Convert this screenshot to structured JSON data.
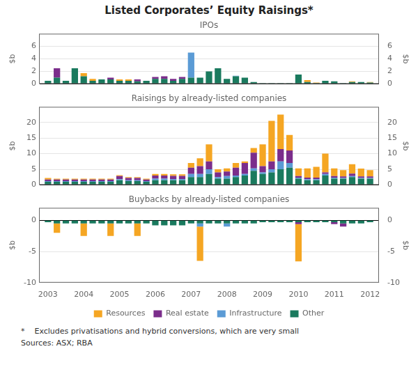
{
  "title": "Listed Corporates’ Equity Raisings*",
  "footnote": "*    Excludes privatisations and hybrid conversions, which are very small\nSources: ASX; RBA",
  "chart_data": [
    {
      "type": "bar",
      "title": "IPOs",
      "stacked": true,
      "grid": "y",
      "tick_labels": "y",
      "x": [
        2003.0,
        2003.25,
        2003.5,
        2003.75,
        2004.0,
        2004.25,
        2004.5,
        2004.75,
        2005.0,
        2005.25,
        2005.5,
        2005.75,
        2006.0,
        2006.25,
        2006.5,
        2006.75,
        2007.0,
        2007.25,
        2007.5,
        2007.75,
        2008.0,
        2008.25,
        2008.5,
        2008.75,
        2009.0,
        2009.25,
        2009.5,
        2009.75,
        2010.0,
        2010.25,
        2010.5,
        2010.75,
        2011.0,
        2011.25,
        2011.5,
        2011.75,
        2012.0
      ],
      "xlim": [
        2002.75,
        2012.25
      ],
      "ylim": [
        0,
        8
      ],
      "yticks": [
        0,
        2,
        4,
        6
      ],
      "ylabel": "$b",
      "y2lim": [
        0,
        8
      ],
      "y2ticks": [
        0,
        2,
        4,
        6
      ],
      "y2label": "$b",
      "series": [
        {
          "name": "Other",
          "color": "#1A7A5E",
          "values": [
            0.5,
            1.0,
            0.5,
            2.5,
            1.2,
            0.5,
            0.7,
            0.7,
            0.5,
            0.5,
            0.4,
            0.5,
            0.8,
            0.8,
            0.5,
            0.8,
            1.0,
            1.0,
            2.0,
            2.5,
            0.8,
            1.2,
            1.0,
            0.3,
            0.1,
            0.1,
            0.1,
            0.1,
            1.5,
            0.3,
            0.1,
            0.5,
            0.4,
            0.1,
            0.3,
            0.3,
            0.2
          ]
        },
        {
          "name": "Infrastructure",
          "color": "#5B9BD5",
          "values": [
            0.0,
            0.0,
            0.0,
            0.0,
            0.0,
            0.0,
            0.0,
            0.0,
            0.0,
            0.0,
            0.0,
            0.0,
            0.0,
            0.0,
            0.0,
            0.0,
            4.0,
            0.0,
            0.0,
            0.0,
            0.0,
            0.1,
            0.0,
            0.0,
            0.0,
            0.0,
            0.0,
            0.0,
            0.0,
            0.0,
            0.0,
            0.0,
            0.0,
            0.0,
            0.0,
            0.0,
            0.0
          ]
        },
        {
          "name": "Real estate",
          "color": "#7B2D8B",
          "values": [
            0.0,
            1.5,
            0.0,
            0.0,
            0.0,
            0.0,
            0.0,
            0.3,
            0.0,
            0.0,
            0.3,
            0.0,
            0.3,
            0.4,
            0.3,
            0.3,
            0.0,
            0.0,
            0.0,
            0.0,
            0.0,
            0.0,
            0.0,
            0.0,
            0.0,
            0.0,
            0.0,
            0.0,
            0.0,
            0.0,
            0.0,
            0.0,
            0.0,
            0.0,
            0.0,
            0.0,
            0.0
          ]
        },
        {
          "name": "Resources",
          "color": "#F5A623",
          "values": [
            0.0,
            0.0,
            0.0,
            0.0,
            0.5,
            0.3,
            0.0,
            0.0,
            0.2,
            0.2,
            0.0,
            0.0,
            0.0,
            0.0,
            0.0,
            0.0,
            0.0,
            0.0,
            0.0,
            0.0,
            0.0,
            0.0,
            0.0,
            0.0,
            0.0,
            0.0,
            0.0,
            0.0,
            0.0,
            0.3,
            0.1,
            0.0,
            0.0,
            0.0,
            0.1,
            0.0,
            0.1
          ]
        }
      ]
    },
    {
      "type": "bar",
      "title": "Raisings by already-listed companies",
      "stacked": true,
      "grid": "y",
      "tick_labels": "y",
      "x": [
        2003.0,
        2003.25,
        2003.5,
        2003.75,
        2004.0,
        2004.25,
        2004.5,
        2004.75,
        2005.0,
        2005.25,
        2005.5,
        2005.75,
        2006.0,
        2006.25,
        2006.5,
        2006.75,
        2007.0,
        2007.25,
        2007.5,
        2007.75,
        2008.0,
        2008.25,
        2008.5,
        2008.75,
        2009.0,
        2009.25,
        2009.5,
        2009.75,
        2010.0,
        2010.25,
        2010.5,
        2010.75,
        2011.0,
        2011.25,
        2011.5,
        2011.75,
        2012.0
      ],
      "xlim": [
        2002.75,
        2012.25
      ],
      "ylim": [
        0,
        25
      ],
      "yticks": [
        0,
        5,
        10,
        15,
        20
      ],
      "ylabel": "$b",
      "y2lim": [
        0,
        25
      ],
      "y2ticks": [
        0,
        5,
        10,
        15,
        20
      ],
      "y2label": "$b",
      "series": [
        {
          "name": "Other",
          "color": "#1A7A5E",
          "values": [
            1.0,
            1.0,
            1.0,
            1.0,
            1.0,
            1.0,
            1.0,
            1.0,
            1.5,
            1.2,
            1.2,
            1.0,
            1.5,
            1.5,
            1.5,
            1.5,
            2.5,
            2.5,
            3.5,
            2.0,
            2.0,
            2.5,
            3.0,
            4.5,
            3.5,
            4.0,
            5.0,
            5.5,
            2.0,
            1.5,
            1.5,
            3.0,
            2.0,
            2.0,
            2.5,
            2.0,
            2.0
          ]
        },
        {
          "name": "Infrastructure",
          "color": "#5B9BD5",
          "values": [
            0.2,
            0.2,
            0.2,
            0.2,
            0.2,
            0.2,
            0.2,
            0.2,
            0.3,
            0.3,
            0.3,
            0.2,
            0.5,
            0.5,
            0.4,
            0.4,
            1.0,
            1.0,
            1.5,
            0.5,
            0.8,
            0.5,
            0.5,
            0.8,
            0.5,
            1.0,
            2.5,
            1.5,
            0.3,
            0.3,
            0.3,
            0.5,
            0.3,
            0.2,
            0.3,
            0.2,
            0.2
          ]
        },
        {
          "name": "Real estate",
          "color": "#7B2D8B",
          "values": [
            0.5,
            0.5,
            0.5,
            0.5,
            0.5,
            0.5,
            0.5,
            0.5,
            1.0,
            0.7,
            0.7,
            0.5,
            1.0,
            1.0,
            1.0,
            1.0,
            2.0,
            2.5,
            2.5,
            1.5,
            1.5,
            2.5,
            3.5,
            5.0,
            2.0,
            2.5,
            4.0,
            4.0,
            0.5,
            0.5,
            0.5,
            0.5,
            0.5,
            0.5,
            0.8,
            0.5,
            0.5
          ]
        },
        {
          "name": "Resources",
          "color": "#F5A623",
          "values": [
            0.5,
            0.3,
            0.3,
            0.3,
            0.3,
            0.3,
            0.3,
            0.3,
            0.3,
            0.3,
            0.3,
            0.3,
            0.5,
            0.5,
            0.5,
            0.5,
            1.5,
            2.5,
            5.5,
            1.0,
            1.0,
            1.5,
            0.5,
            1.5,
            7.0,
            13.0,
            11.0,
            5.0,
            2.5,
            3.0,
            3.5,
            6.0,
            2.5,
            2.0,
            3.0,
            2.5,
            2.0
          ]
        }
      ]
    },
    {
      "type": "bar",
      "title": "Buybacks by already-listed companies",
      "stacked": true,
      "grid": "y",
      "legend": "bottom",
      "x": [
        2003.0,
        2003.25,
        2003.5,
        2003.75,
        2004.0,
        2004.25,
        2004.5,
        2004.75,
        2005.0,
        2005.25,
        2005.5,
        2005.75,
        2006.0,
        2006.25,
        2006.5,
        2006.75,
        2007.0,
        2007.25,
        2007.5,
        2007.75,
        2008.0,
        2008.25,
        2008.5,
        2008.75,
        2009.0,
        2009.25,
        2009.5,
        2009.75,
        2010.0,
        2010.25,
        2010.5,
        2010.75,
        2011.0,
        2011.25,
        2011.5,
        2011.75,
        2012.0
      ],
      "xlim": [
        2002.75,
        2012.25
      ],
      "xticks": [
        2003,
        2004,
        2005,
        2006,
        2007,
        2008,
        2009,
        2010,
        2011,
        2012
      ],
      "ylim": [
        -10,
        2
      ],
      "yticks": [
        -10,
        -5,
        0
      ],
      "ylabel": "$b",
      "y2lim": [
        -10,
        2
      ],
      "y2ticks": [
        -10,
        -5,
        0
      ],
      "y2label": "$b",
      "series": [
        {
          "name": "Other",
          "color": "#1A7A5E",
          "values": [
            -0.3,
            -0.5,
            -0.5,
            -0.5,
            -0.5,
            -0.5,
            -0.5,
            -0.5,
            -0.5,
            -0.5,
            -0.5,
            -0.5,
            -0.8,
            -0.8,
            -0.8,
            -0.8,
            -0.5,
            -0.5,
            -0.5,
            -0.5,
            -0.5,
            -0.5,
            -0.5,
            -0.5,
            -0.3,
            -0.3,
            -0.3,
            -0.3,
            -0.3,
            -0.3,
            -0.3,
            -0.3,
            -0.3,
            -0.5,
            -0.5,
            -0.5,
            -0.3
          ]
        },
        {
          "name": "Infrastructure",
          "color": "#5B9BD5",
          "values": [
            0.0,
            0.0,
            0.0,
            0.0,
            0.0,
            0.0,
            0.0,
            0.0,
            0.0,
            0.0,
            0.0,
            0.0,
            0.0,
            0.0,
            0.0,
            0.0,
            0.0,
            -0.5,
            0.0,
            0.0,
            -0.5,
            0.0,
            0.0,
            0.0,
            0.0,
            0.0,
            0.0,
            0.0,
            0.0,
            0.0,
            0.0,
            0.0,
            0.0,
            0.0,
            0.0,
            0.0,
            0.0
          ]
        },
        {
          "name": "Real estate",
          "color": "#7B2D8B",
          "values": [
            0.0,
            0.0,
            0.0,
            0.0,
            0.0,
            0.0,
            0.0,
            0.0,
            0.0,
            0.0,
            0.0,
            0.0,
            0.0,
            0.0,
            0.0,
            0.0,
            0.0,
            0.0,
            0.0,
            0.0,
            0.0,
            0.0,
            0.0,
            0.0,
            0.0,
            0.0,
            0.0,
            0.0,
            -0.3,
            0.0,
            0.0,
            0.0,
            -0.3,
            -0.5,
            0.0,
            0.0,
            0.0
          ]
        },
        {
          "name": "Resources",
          "color": "#F5A623",
          "values": [
            0.0,
            -1.5,
            0.0,
            0.0,
            -2.0,
            0.0,
            0.0,
            -2.0,
            0.0,
            0.0,
            -2.0,
            0.0,
            0.0,
            0.0,
            0.0,
            0.0,
            0.0,
            -5.5,
            0.0,
            0.0,
            0.0,
            0.0,
            0.0,
            0.0,
            0.0,
            0.0,
            0.0,
            0.0,
            -6.0,
            0.0,
            0.0,
            0.0,
            0.0,
            0.0,
            0.0,
            0.0,
            0.0
          ]
        }
      ]
    }
  ]
}
